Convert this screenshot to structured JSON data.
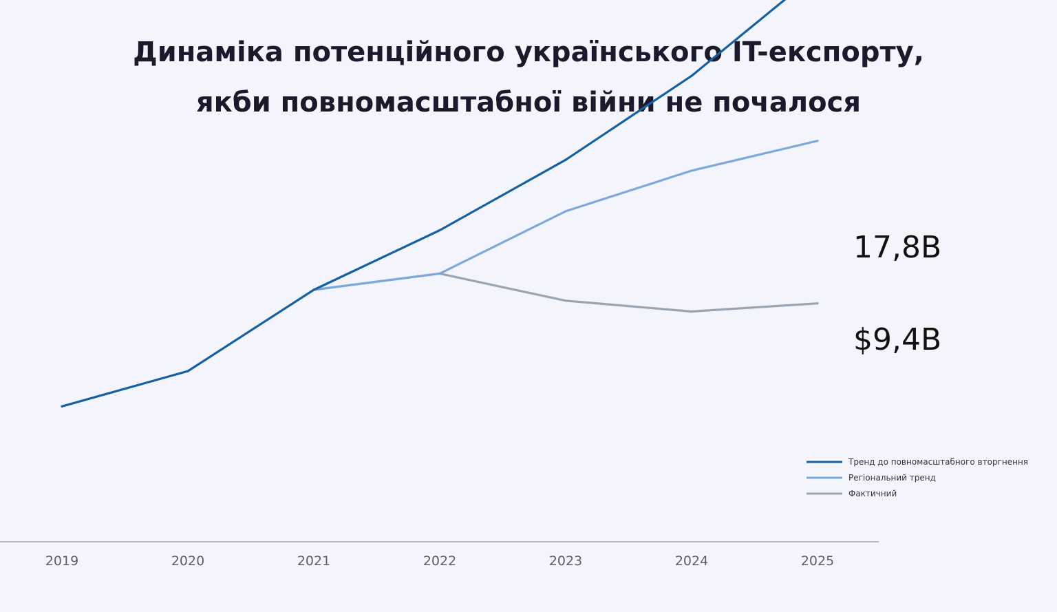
{
  "chart_data": {
    "type": "line",
    "title": "Динаміка потенційного українського IT-експорту, якби повномасштабної війни не почалося",
    "title_lines": [
      "Динаміка потенційного українського IT-експорту,",
      "якби повномасштабної війни не почалося"
    ],
    "x": [
      "2019",
      "2020",
      "2021",
      "2022",
      "2023",
      "2024",
      "2025"
    ],
    "ylim": [
      0,
      20
    ],
    "series": [
      {
        "name": "Тренд до повномасштабного вторгнення",
        "color": "#1560a0",
        "values": [
          5.0,
          6.3,
          9.3,
          11.5,
          14.1,
          17.2,
          21.0
        ]
      },
      {
        "name": "Регіональний тренд",
        "color": "#7ea8d8",
        "values": [
          null,
          null,
          9.3,
          9.9,
          12.2,
          13.7,
          14.8
        ]
      },
      {
        "name": "Фактичний",
        "color": "#9aa3b2",
        "values": [
          null,
          null,
          9.3,
          9.9,
          8.9,
          8.5,
          8.8
        ]
      }
    ],
    "annotations": [
      {
        "text": "17,8B"
      },
      {
        "text": "$9,4B"
      }
    ],
    "grid": false,
    "legend_position": "bottom-right"
  }
}
